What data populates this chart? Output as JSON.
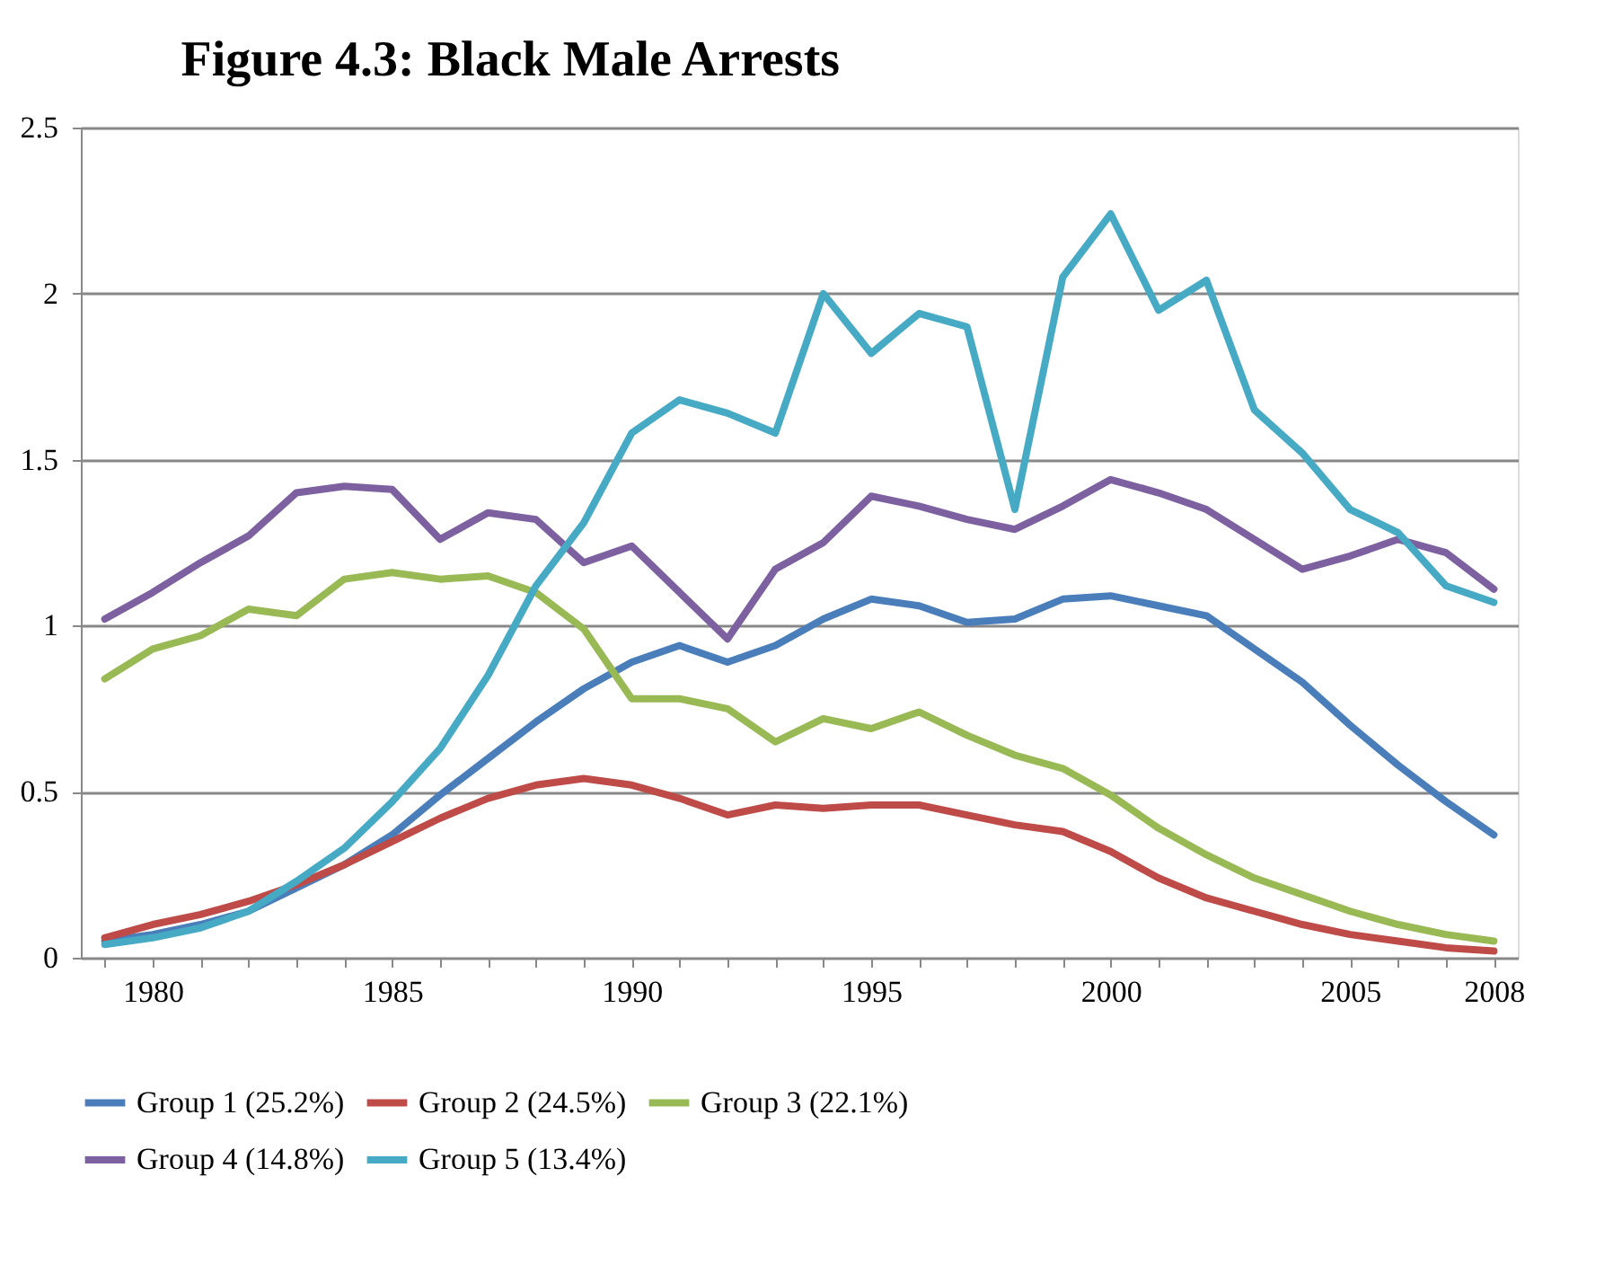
{
  "chart_data": {
    "type": "line",
    "title": "Figure 4.3: Black Male Arrests",
    "x": [
      1979,
      1980,
      1981,
      1982,
      1983,
      1984,
      1985,
      1986,
      1987,
      1988,
      1989,
      1990,
      1991,
      1992,
      1993,
      1994,
      1995,
      1996,
      1997,
      1998,
      1999,
      2000,
      2001,
      2002,
      2003,
      2004,
      2005,
      2006,
      2007,
      2008
    ],
    "series": [
      {
        "name": "Group 1 (25.2%)",
        "color": "#4a7ebb",
        "values": [
          0.05,
          0.07,
          0.1,
          0.14,
          0.21,
          0.28,
          0.37,
          0.49,
          0.6,
          0.71,
          0.81,
          0.89,
          0.94,
          0.89,
          0.94,
          1.02,
          1.08,
          1.06,
          1.01,
          1.02,
          1.08,
          1.09,
          1.06,
          1.03,
          0.93,
          0.83,
          0.7,
          0.58,
          0.47,
          0.37
        ]
      },
      {
        "name": "Group 2 (24.5%)",
        "color": "#be4b48",
        "values": [
          0.06,
          0.1,
          0.13,
          0.17,
          0.22,
          0.28,
          0.35,
          0.42,
          0.48,
          0.52,
          0.54,
          0.52,
          0.48,
          0.43,
          0.46,
          0.45,
          0.46,
          0.46,
          0.43,
          0.4,
          0.38,
          0.32,
          0.24,
          0.18,
          0.14,
          0.1,
          0.07,
          0.05,
          0.03,
          0.02
        ]
      },
      {
        "name": "Group 3 (22.1%)",
        "color": "#98b954",
        "values": [
          0.84,
          0.93,
          0.97,
          1.05,
          1.03,
          1.14,
          1.16,
          1.14,
          1.15,
          1.1,
          0.99,
          0.78,
          0.78,
          0.75,
          0.65,
          0.72,
          0.69,
          0.74,
          0.67,
          0.61,
          0.57,
          0.49,
          0.39,
          0.31,
          0.24,
          0.19,
          0.14,
          0.1,
          0.07,
          0.05
        ]
      },
      {
        "name": "Group 4 (14.8%)",
        "color": "#7d60a0",
        "values": [
          1.02,
          1.1,
          1.19,
          1.27,
          1.4,
          1.42,
          1.41,
          1.26,
          1.34,
          1.32,
          1.19,
          1.24,
          1.1,
          0.96,
          1.17,
          1.25,
          1.39,
          1.36,
          1.32,
          1.29,
          1.36,
          1.44,
          1.4,
          1.35,
          1.26,
          1.17,
          1.21,
          1.26,
          1.22,
          1.11
        ]
      },
      {
        "name": "Group 5 (13.4%)",
        "color": "#46aac5",
        "values": [
          0.04,
          0.06,
          0.09,
          0.14,
          0.23,
          0.33,
          0.47,
          0.63,
          0.85,
          1.12,
          1.31,
          1.58,
          1.68,
          1.64,
          1.58,
          2.0,
          1.82,
          1.94,
          1.9,
          1.35,
          2.05,
          2.24,
          1.95,
          2.04,
          1.65,
          1.52,
          1.35,
          1.28,
          1.12,
          1.07
        ]
      }
    ],
    "xlim": [
      1978.5,
      2008.5
    ],
    "xticks": [
      {
        "value": 1979,
        "label": null
      },
      1980,
      {
        "value": 1981,
        "label": null
      },
      {
        "value": 1982,
        "label": null
      },
      {
        "value": 1983,
        "label": null
      },
      {
        "value": 1984,
        "label": null
      },
      1985,
      {
        "value": 1986,
        "label": null
      },
      {
        "value": 1987,
        "label": null
      },
      {
        "value": 1988,
        "label": null
      },
      {
        "value": 1989,
        "label": null
      },
      1990,
      {
        "value": 1991,
        "label": null
      },
      {
        "value": 1992,
        "label": null
      },
      {
        "value": 1993,
        "label": null
      },
      {
        "value": 1994,
        "label": null
      },
      1995,
      {
        "value": 1996,
        "label": null
      },
      {
        "value": 1997,
        "label": null
      },
      {
        "value": 1998,
        "label": null
      },
      {
        "value": 1999,
        "label": null
      },
      2000,
      {
        "value": 2001,
        "label": null
      },
      {
        "value": 2002,
        "label": null
      },
      {
        "value": 2003,
        "label": null
      },
      {
        "value": 2004,
        "label": null
      },
      2005,
      {
        "value": 2006,
        "label": null
      },
      {
        "value": 2007,
        "label": null
      },
      2008
    ],
    "ylim": [
      0,
      2.5
    ],
    "yticks": [
      0,
      0.5,
      1,
      1.5,
      2,
      2.5
    ],
    "grid": "y",
    "legend": "bottom",
    "marker": "none",
    "line_style": "solid"
  }
}
